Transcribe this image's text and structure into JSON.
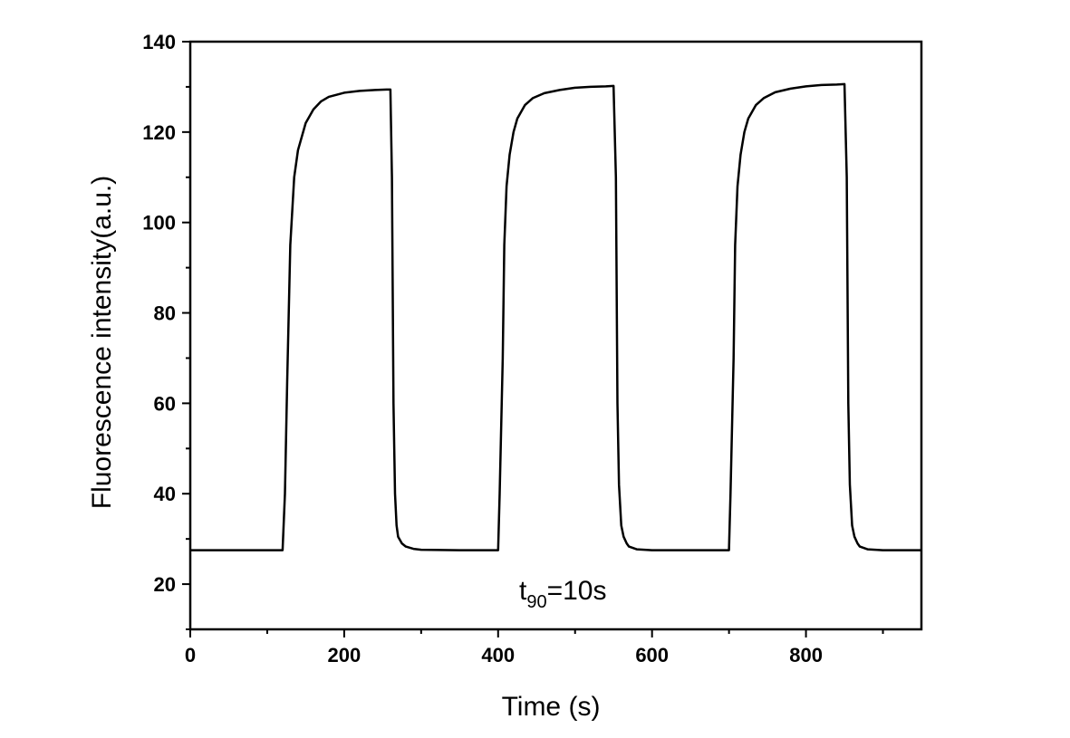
{
  "chart_data": {
    "type": "line",
    "title": "",
    "xlabel": "Time (s)",
    "ylabel": "Fluorescence intensity(a.u.)",
    "xlim": [
      0,
      950
    ],
    "ylim": [
      10,
      140
    ],
    "xticks": [
      0,
      200,
      400,
      600,
      800
    ],
    "yticks": [
      20,
      40,
      60,
      80,
      100,
      120,
      140
    ],
    "x_minor_step": 100,
    "y_minor_step": 10,
    "grid": false,
    "legend": "none",
    "line_color": "#000000",
    "annotation": {
      "main": "t",
      "sub": "90",
      "rest": "=10s"
    },
    "series": [
      {
        "x": [
          0,
          100,
          120,
          123,
          126,
          130,
          135,
          140,
          150,
          160,
          170,
          180,
          200,
          220,
          240,
          255,
          260,
          262,
          264,
          266,
          268,
          270,
          275,
          280,
          290,
          300,
          350,
          400,
          402,
          406,
          408,
          411,
          415,
          420,
          425,
          435,
          445,
          460,
          480,
          500,
          520,
          540,
          550,
          553,
          555,
          557,
          560,
          563,
          567,
          570,
          580,
          600,
          650,
          700,
          702,
          706,
          708,
          711,
          715,
          720,
          725,
          735,
          745,
          760,
          780,
          800,
          820,
          840,
          850,
          853,
          855,
          857,
          860,
          863,
          867,
          870,
          880,
          900,
          950
        ],
        "y": [
          27.5,
          27.5,
          27.5,
          40,
          65,
          95,
          110,
          116,
          122,
          125,
          126.8,
          127.8,
          128.7,
          129.1,
          129.3,
          129.4,
          129.4,
          110,
          60,
          40,
          33,
          30.5,
          29,
          28.3,
          27.8,
          27.6,
          27.5,
          27.5,
          40,
          70,
          95,
          108,
          115,
          120,
          123,
          126,
          127.5,
          128.6,
          129.3,
          129.8,
          130,
          130.1,
          130.2,
          110,
          60,
          42,
          33,
          30.5,
          29,
          28.3,
          27.7,
          27.5,
          27.5,
          27.5,
          40,
          70,
          95,
          108,
          115,
          120,
          123,
          126,
          127.5,
          128.8,
          129.6,
          130.1,
          130.4,
          130.5,
          130.6,
          110,
          60,
          42,
          33,
          30.5,
          29,
          28.3,
          27.7,
          27.5,
          27.5
        ]
      }
    ]
  }
}
